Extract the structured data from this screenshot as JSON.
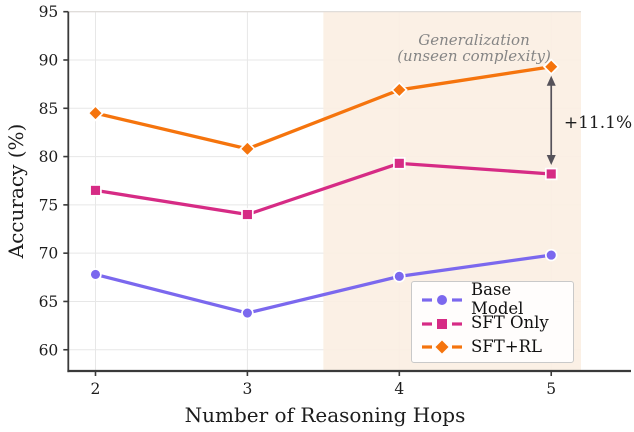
{
  "chart_data": {
    "type": "line",
    "title": "",
    "xlabel": "Number of Reasoning Hops",
    "ylabel": "Accuracy (%)",
    "x": [
      2,
      3,
      4,
      5
    ],
    "xticks": [
      2,
      3,
      4,
      5
    ],
    "yticks": [
      60,
      65,
      70,
      75,
      80,
      85,
      90,
      95
    ],
    "xlim": [
      1.821,
      5.196
    ],
    "ylim": [
      57.8,
      95
    ],
    "grid": true,
    "legend_position": "lower right",
    "series": [
      {
        "name": "Base Model",
        "marker": "circle",
        "color": "#7b68ee",
        "values": [
          67.8,
          63.8,
          67.6,
          69.8
        ]
      },
      {
        "name": "SFT Only",
        "marker": "square",
        "color": "#d62b85",
        "values": [
          76.5,
          74.0,
          79.3,
          78.2
        ]
      },
      {
        "name": "SFT+RL",
        "marker": "diamond",
        "color": "#f5740d",
        "values": [
          84.5,
          80.8,
          86.9,
          89.3
        ]
      }
    ],
    "shaded_region": {
      "x_start": 3.5,
      "x_end": 5.196,
      "color": "#fbeee2",
      "label_line1": "Generalization",
      "label_line2": "(unseen complexity)"
    },
    "annotations": {
      "gap_label": "+11.1%",
      "gap_x": 5,
      "gap_from_value": 89.3,
      "gap_to_value": 78.2
    },
    "colors": {
      "grid": "#e7e7e7",
      "spine": "#3a3a3a",
      "top_spine": "#dedad6",
      "arrow": "#55525a",
      "annotation_text": "#858585"
    }
  }
}
